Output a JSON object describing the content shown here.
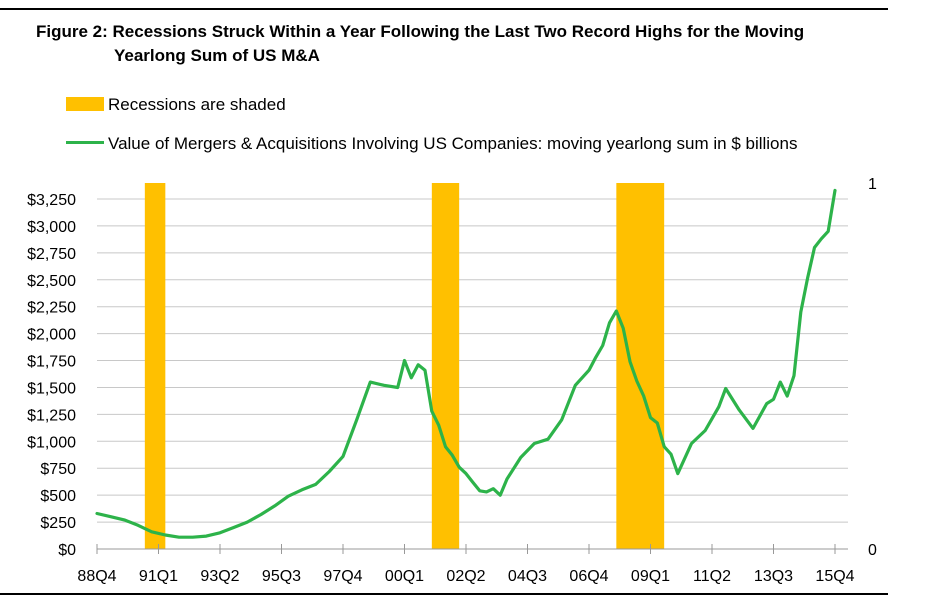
{
  "title_line1": "Figure 2: Recessions Struck Within a Year Following the Last Two Record Highs for the Moving",
  "title_line2": "Yearlong Sum of US M&A",
  "legend": {
    "recessions_label": "Recessions are shaded",
    "ma_label": "Value of Mergers & Acquisitions Involving US Companies: moving yearlong sum in $ billions"
  },
  "colors": {
    "line": "#2db34a",
    "recession": "#ffc000",
    "grid": "#c8c8c8",
    "axis": "#999999"
  },
  "chart_data": {
    "type": "line",
    "title": "Figure 2: Recessions Struck Within a Year Following the Last Two Record Highs for the Moving Yearlong Sum of US M&A",
    "xlabel": "",
    "ylabel": "",
    "x_start": "88Q4",
    "x_end": "15Q4",
    "x_tick_labels": [
      "88Q4",
      "91Q1",
      "93Q2",
      "95Q3",
      "97Q4",
      "00Q1",
      "02Q2",
      "04Q3",
      "06Q4",
      "09Q1",
      "11Q2",
      "13Q3",
      "15Q4"
    ],
    "ylim": [
      0,
      3250
    ],
    "y_ticks": [
      0,
      250,
      500,
      750,
      1000,
      1250,
      1500,
      1750,
      2000,
      2250,
      2500,
      2750,
      3000,
      3250
    ],
    "y_tick_labels": [
      "$0",
      "$250",
      "$500",
      "$750",
      "$1,000",
      "$1,250",
      "$1,500",
      "$1,750",
      "$2,000",
      "$2,250",
      "$2,500",
      "$2,750",
      "$3,000",
      "$3,250"
    ],
    "secondary_y_tick_labels": [
      "0",
      "1"
    ],
    "grid": true,
    "recessions": [
      {
        "start": "90Q3",
        "end": "91Q1"
      },
      {
        "start": "01Q1",
        "end": "01Q4"
      },
      {
        "start": "07Q4",
        "end": "09Q2"
      }
    ],
    "series": [
      {
        "name": "Value of Mergers & Acquisitions Involving US Companies: moving yearlong sum in $ billions",
        "x": [
          "88Q4",
          "89Q2",
          "89Q4",
          "90Q2",
          "90Q4",
          "91Q2",
          "91Q4",
          "92Q2",
          "92Q4",
          "93Q2",
          "93Q4",
          "94Q2",
          "94Q4",
          "95Q2",
          "95Q4",
          "96Q2",
          "96Q4",
          "97Q2",
          "97Q4",
          "98Q2",
          "98Q4",
          "99Q2",
          "99Q4",
          "00Q1",
          "00Q2",
          "00Q3",
          "00Q4",
          "01Q1",
          "01Q2",
          "01Q3",
          "01Q4",
          "02Q1",
          "02Q2",
          "02Q3",
          "02Q4",
          "03Q1",
          "03Q2",
          "03Q3",
          "03Q4",
          "04Q2",
          "04Q4",
          "05Q2",
          "05Q4",
          "06Q2",
          "06Q4",
          "07Q1",
          "07Q2",
          "07Q3",
          "07Q4",
          "08Q1",
          "08Q2",
          "08Q3",
          "08Q4",
          "09Q1",
          "09Q2",
          "09Q3",
          "09Q4",
          "10Q1",
          "10Q3",
          "11Q1",
          "11Q2",
          "11Q3",
          "11Q4",
          "12Q2",
          "12Q4",
          "13Q2",
          "13Q3",
          "13Q4",
          "14Q1",
          "14Q2",
          "14Q3",
          "14Q4",
          "15Q1",
          "15Q2",
          "15Q3",
          "15Q4"
        ],
        "values": [
          330,
          300,
          270,
          220,
          160,
          130,
          110,
          110,
          120,
          150,
          200,
          250,
          320,
          400,
          490,
          550,
          600,
          720,
          860,
          1200,
          1550,
          1520,
          1500,
          1750,
          1590,
          1710,
          1660,
          1280,
          1150,
          950,
          870,
          760,
          700,
          620,
          540,
          530,
          560,
          500,
          650,
          850,
          980,
          1020,
          1200,
          1520,
          1660,
          1780,
          1890,
          2100,
          2210,
          2050,
          1740,
          1560,
          1420,
          1220,
          1170,
          950,
          880,
          700,
          980,
          1100,
          1210,
          1320,
          1490,
          1290,
          1120,
          1350,
          1390,
          1550,
          1420,
          1610,
          2200,
          2520,
          2800,
          2880,
          2950,
          3330
        ]
      }
    ]
  }
}
